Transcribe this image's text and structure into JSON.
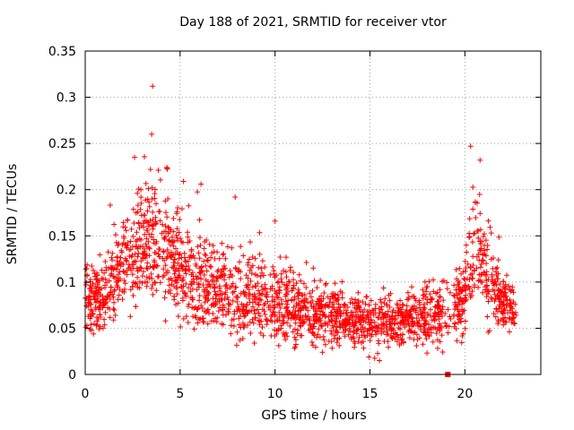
{
  "chart_data": {
    "type": "scatter",
    "title": "Day 188 of 2021, SRMTID for receiver vtor",
    "xlabel": "GPS time / hours",
    "ylabel": "SRMTID / TECUs",
    "xlim": [
      0,
      24
    ],
    "ylim": [
      0,
      0.35
    ],
    "x_ticks": [
      0,
      5,
      10,
      15,
      20
    ],
    "x_tick_labels": [
      "0",
      "5",
      "10",
      "15",
      "20"
    ],
    "y_ticks": [
      0,
      0.05,
      0.1,
      0.15,
      0.2,
      0.25,
      0.3,
      0.35
    ],
    "y_tick_labels": [
      "0",
      "0.05",
      "0.1",
      "0.15",
      "0.2",
      "0.25",
      "0.3",
      "0.35"
    ],
    "grid": true,
    "marker": "+",
    "color": "#ff0000",
    "data_x_range": [
      0,
      22.7
    ],
    "notable_points": [
      {
        "x": 3.55,
        "y": 0.312
      },
      {
        "x": 3.5,
        "y": 0.26
      },
      {
        "x": 20.3,
        "y": 0.247
      },
      {
        "x": 2.6,
        "y": 0.235
      },
      {
        "x": 20.8,
        "y": 0.232
      },
      {
        "x": 4.3,
        "y": 0.224
      },
      {
        "x": 6.1,
        "y": 0.206
      },
      {
        "x": 7.9,
        "y": 0.192
      },
      {
        "x": 10,
        "y": 0.166
      },
      {
        "x": 15.5,
        "y": 0.015
      },
      {
        "x": 19.1,
        "y": 0.0
      }
    ],
    "envelope": [
      {
        "x": 0.0,
        "center": 0.085,
        "spread": 0.03
      },
      {
        "x": 1.0,
        "center": 0.08,
        "spread": 0.03
      },
      {
        "x": 2.0,
        "center": 0.12,
        "spread": 0.045
      },
      {
        "x": 2.8,
        "center": 0.14,
        "spread": 0.05
      },
      {
        "x": 3.6,
        "center": 0.15,
        "spread": 0.06
      },
      {
        "x": 4.5,
        "center": 0.13,
        "spread": 0.05
      },
      {
        "x": 5.5,
        "center": 0.105,
        "spread": 0.045
      },
      {
        "x": 7.0,
        "center": 0.09,
        "spread": 0.04
      },
      {
        "x": 8.5,
        "center": 0.085,
        "spread": 0.04
      },
      {
        "x": 10.0,
        "center": 0.075,
        "spread": 0.035
      },
      {
        "x": 12.0,
        "center": 0.065,
        "spread": 0.03
      },
      {
        "x": 14.0,
        "center": 0.06,
        "spread": 0.025
      },
      {
        "x": 15.5,
        "center": 0.055,
        "spread": 0.025
      },
      {
        "x": 17.0,
        "center": 0.06,
        "spread": 0.025
      },
      {
        "x": 18.5,
        "center": 0.06,
        "spread": 0.03
      },
      {
        "x": 19.8,
        "center": 0.075,
        "spread": 0.035
      },
      {
        "x": 20.5,
        "center": 0.13,
        "spread": 0.06
      },
      {
        "x": 21.2,
        "center": 0.11,
        "spread": 0.05
      },
      {
        "x": 22.0,
        "center": 0.075,
        "spread": 0.025
      },
      {
        "x": 22.7,
        "center": 0.065,
        "spread": 0.02
      }
    ]
  }
}
